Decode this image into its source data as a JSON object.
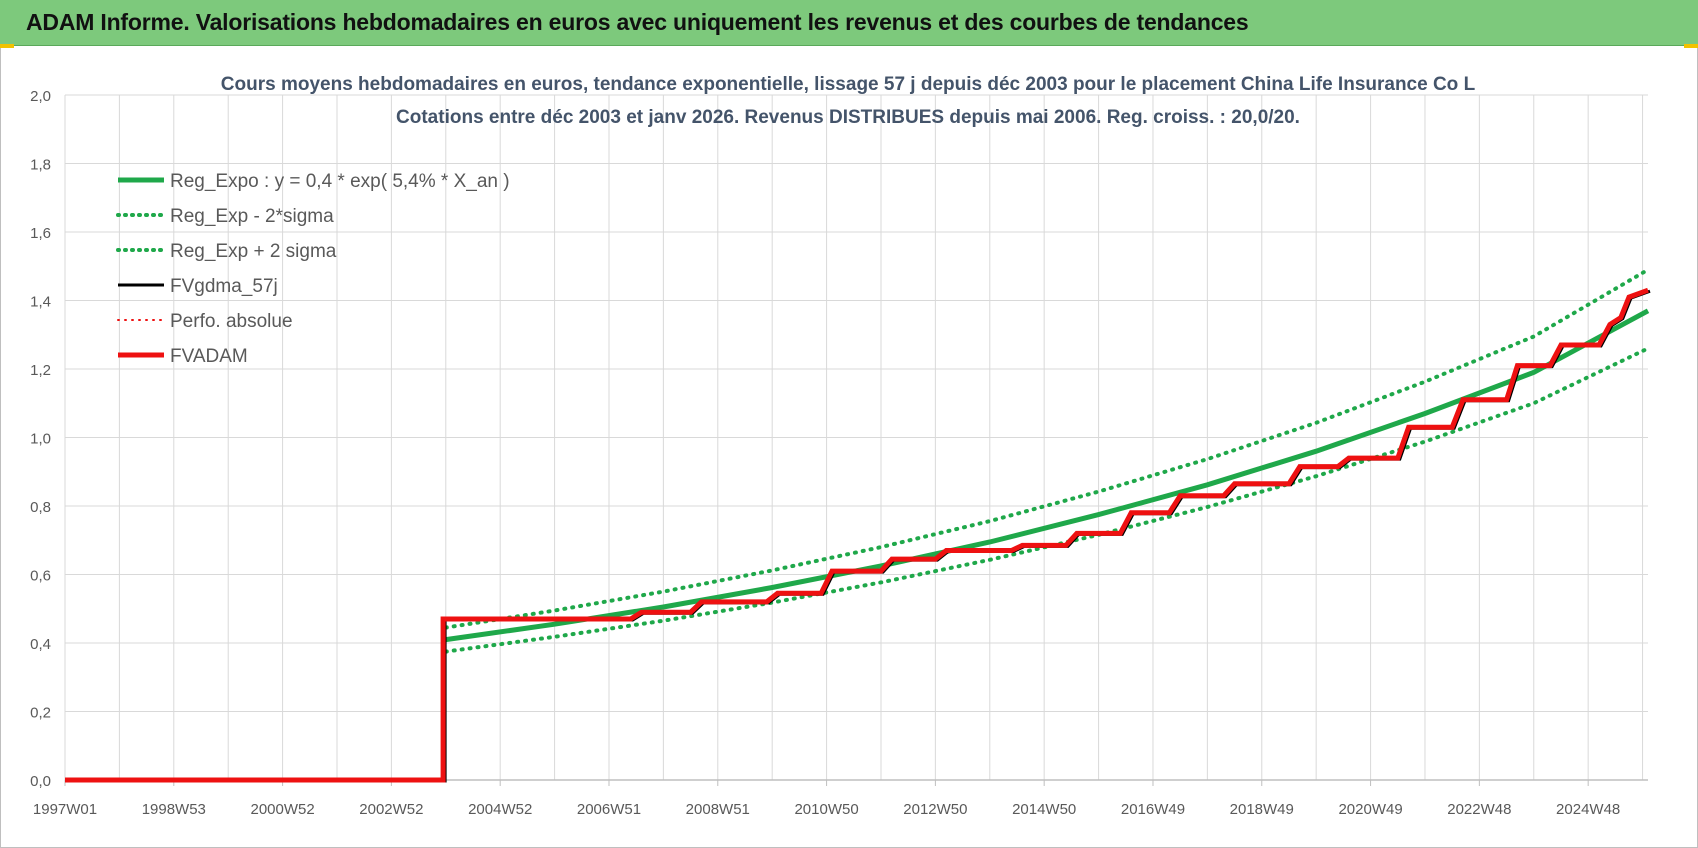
{
  "header": {
    "title": "ADAM Informe. Valorisations hebdomadaires en euros avec uniquement les revenus et des courbes de tendances"
  },
  "colors": {
    "banner": "#7dc97c",
    "green": "#1fa84a",
    "black": "#000000",
    "red": "#ee1111",
    "grid": "#d9d9d9",
    "text": "#595959",
    "title_text": "#44546a"
  },
  "chart_data": {
    "type": "line",
    "title_lines": [
      "Cours moyens hebdomadaires en euros, tendance exponentielle, lissage 57 j depuis déc 2003 pour le placement China Life Insurance Co L",
      "Cotations entre déc 2003 et janv 2026. Revenus DISTRIBUES depuis mai 2006. Reg. croiss. : 20,0/20."
    ],
    "x_tick_labels": [
      "1997W01",
      "1998W53",
      "2000W52",
      "2002W52",
      "2004W52",
      "2006W51",
      "2008W51",
      "2010W50",
      "2012W50",
      "2014W50",
      "2016W49",
      "2018W49",
      "2020W49",
      "2022W48",
      "2024W48"
    ],
    "x_tick_years": [
      1997.0,
      1999.0,
      2001.0,
      2003.0,
      2005.0,
      2007.0,
      2009.0,
      2011.0,
      2013.0,
      2015.0,
      2017.0,
      2019.0,
      2021.0,
      2023.0,
      2025.0
    ],
    "x_range": [
      1997.0,
      2026.1
    ],
    "y_range": [
      0,
      2.0
    ],
    "y_ticks": [
      0,
      0.2,
      0.4,
      0.6,
      0.8,
      1.0,
      1.2,
      1.4,
      1.6,
      1.8,
      2.0
    ],
    "y_tick_labels": [
      "0,0",
      "0,2",
      "0,4",
      "0,6",
      "0,8",
      "1,0",
      "1,2",
      "1,4",
      "1,6",
      "1,8",
      "2,0"
    ],
    "grid": true,
    "legend_position": "top-left",
    "legend": [
      {
        "label": "Reg_Expo : y = 0,4 * exp( 5,4% *  X_an )",
        "color": "#1fa84a",
        "style": "solid",
        "width": 5
      },
      {
        "label": "Reg_Exp - 2*sigma",
        "color": "#1fa84a",
        "style": "dotted",
        "width": 4
      },
      {
        "label": "Reg_Exp + 2 sigma",
        "color": "#1fa84a",
        "style": "dotted",
        "width": 4
      },
      {
        "label": "FVgdma_57j",
        "color": "#000000",
        "style": "solid",
        "width": 3
      },
      {
        "label": "Perfo. absolue",
        "color": "#ee1111",
        "style": "dotted",
        "width": 2
      },
      {
        "label": "FVADAM",
        "color": "#ee1111",
        "style": "solid",
        "width": 5
      }
    ],
    "series": [
      {
        "name": "Reg_Expo : y = 0,4 * exp( 5,4% *  X_an )",
        "x": [
          2004.0,
          2006.0,
          2008.0,
          2010.0,
          2012.0,
          2014.0,
          2016.0,
          2018.0,
          2020.0,
          2022.0,
          2024.0,
          2026.1
        ],
        "y": [
          0.41,
          0.455,
          0.505,
          0.562,
          0.625,
          0.695,
          0.775,
          0.862,
          0.96,
          1.07,
          1.19,
          1.37
        ]
      },
      {
        "name": "Reg_Exp - 2*sigma",
        "x": [
          2004.0,
          2006.0,
          2008.0,
          2010.0,
          2012.0,
          2014.0,
          2016.0,
          2018.0,
          2020.0,
          2022.0,
          2024.0,
          2026.1
        ],
        "y": [
          0.375,
          0.418,
          0.465,
          0.518,
          0.577,
          0.643,
          0.716,
          0.797,
          0.887,
          0.988,
          1.1,
          1.26
        ]
      },
      {
        "name": "Reg_Exp + 2 sigma",
        "x": [
          2004.0,
          2006.0,
          2008.0,
          2010.0,
          2012.0,
          2014.0,
          2016.0,
          2018.0,
          2020.0,
          2022.0,
          2024.0,
          2026.1
        ],
        "y": [
          0.445,
          0.495,
          0.55,
          0.612,
          0.68,
          0.756,
          0.842,
          0.937,
          1.043,
          1.163,
          1.295,
          1.49
        ]
      },
      {
        "name": "FVADAM",
        "x": [
          1997.0,
          2003.95,
          2003.95,
          2007.4,
          2007.6,
          2008.5,
          2008.7,
          2009.9,
          2010.1,
          2010.9,
          2011.1,
          2012.0,
          2012.2,
          2013.0,
          2013.2,
          2014.4,
          2014.6,
          2015.4,
          2015.6,
          2016.4,
          2016.6,
          2017.3,
          2017.5,
          2018.3,
          2018.5,
          2019.5,
          2019.7,
          2020.4,
          2020.6,
          2021.5,
          2021.7,
          2022.5,
          2022.7,
          2023.5,
          2023.7,
          2024.3,
          2024.5,
          2025.2,
          2025.4,
          2025.6,
          2025.75,
          2026.1
        ],
        "y": [
          0.0,
          0.0,
          0.47,
          0.47,
          0.49,
          0.49,
          0.52,
          0.52,
          0.545,
          0.545,
          0.61,
          0.61,
          0.645,
          0.645,
          0.67,
          0.67,
          0.685,
          0.685,
          0.72,
          0.72,
          0.78,
          0.78,
          0.83,
          0.83,
          0.865,
          0.865,
          0.915,
          0.915,
          0.94,
          0.94,
          1.03,
          1.03,
          1.11,
          1.11,
          1.21,
          1.21,
          1.27,
          1.27,
          1.33,
          1.35,
          1.41,
          1.43
        ]
      }
    ]
  }
}
